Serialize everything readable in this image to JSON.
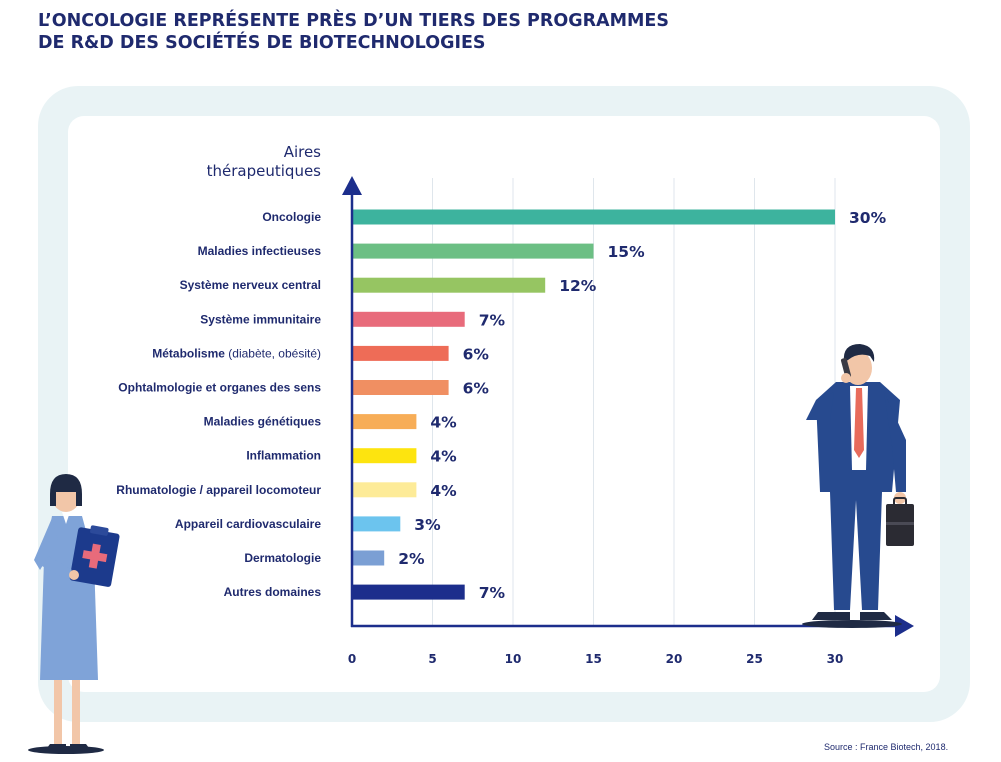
{
  "page": {
    "title_line1": "L’ONCOLOGIE REPRÉSENTE PRÈS D’UN TIERS DES PROGRAMMES",
    "title_line2": "DE R&D DES SOCIÉTÉS DE BIOTECHNOLOGIES",
    "source": "Source : France Biotech, 2018."
  },
  "chart_data": {
    "type": "bar",
    "orientation": "horizontal",
    "ylabel_line1": "Aires",
    "ylabel_line2": "thérapeutiques",
    "xlabel": "",
    "xlim": [
      0,
      30
    ],
    "xticks": [
      "0",
      "5",
      "10",
      "15",
      "20",
      "25",
      "30"
    ],
    "grid": true,
    "categories": [
      {
        "bold": "Oncologie",
        "normal": ""
      },
      {
        "bold": "Maladies infectieuses",
        "normal": ""
      },
      {
        "bold": "Système nerveux central",
        "normal": ""
      },
      {
        "bold": "Système immunitaire",
        "normal": ""
      },
      {
        "bold": "Métabolisme",
        "normal": " (diabète, obésité)"
      },
      {
        "bold": "Ophtalmologie et organes des sens",
        "normal": ""
      },
      {
        "bold": "Maladies génétiques",
        "normal": ""
      },
      {
        "bold": "Inflammation",
        "normal": ""
      },
      {
        "bold": "Rhumatologie / appareil locomoteur",
        "normal": ""
      },
      {
        "bold": "Appareil cardiovasculaire",
        "normal": ""
      },
      {
        "bold": "Dermatologie",
        "normal": ""
      },
      {
        "bold": "Autres domaines",
        "normal": ""
      }
    ],
    "values": [
      30,
      15,
      12,
      7,
      6,
      6,
      4,
      4,
      4,
      3,
      2,
      7
    ],
    "value_labels": [
      "30%",
      "15%",
      "12%",
      "7%",
      "6%",
      "6%",
      "4%",
      "4%",
      "4%",
      "3%",
      "2%",
      "7%"
    ],
    "colors": [
      "#3db39e",
      "#6cbf84",
      "#96c562",
      "#e86b7b",
      "#ee6c57",
      "#f08f62",
      "#f7ad57",
      "#fde40f",
      "#fdeb98",
      "#6cc4ee",
      "#7b9fd4",
      "#1c2e8c"
    ]
  }
}
